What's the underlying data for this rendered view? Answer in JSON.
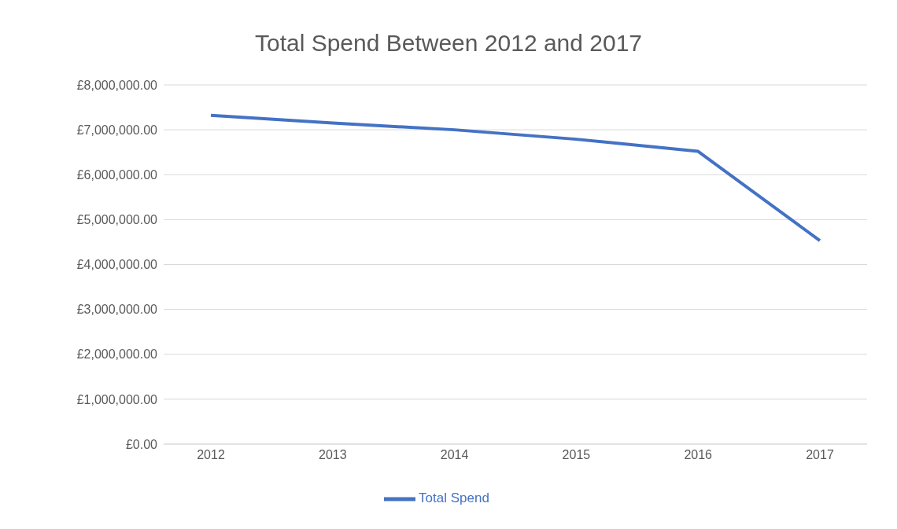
{
  "chart_data": {
    "type": "line",
    "title": "Total Spend Between 2012 and 2017",
    "categories": [
      "2012",
      "2013",
      "2014",
      "2015",
      "2016",
      "2017"
    ],
    "series": [
      {
        "name": "Total Spend",
        "color": "#4472c4",
        "values": [
          7320000,
          7150000,
          7000000,
          6790000,
          6520000,
          4530000
        ]
      }
    ],
    "ylim": [
      0,
      8000000
    ],
    "yticks": [
      {
        "value": 0,
        "label": "£0.00"
      },
      {
        "value": 1000000,
        "label": "£1,000,000.00"
      },
      {
        "value": 2000000,
        "label": "£2,000,000.00"
      },
      {
        "value": 3000000,
        "label": "£3,000,000.00"
      },
      {
        "value": 4000000,
        "label": "£4,000,000.00"
      },
      {
        "value": 5000000,
        "label": "£5,000,000.00"
      },
      {
        "value": 6000000,
        "label": "£6,000,000.00"
      },
      {
        "value": 7000000,
        "label": "£7,000,000.00"
      },
      {
        "value": 8000000,
        "label": "£8,000,000.00"
      }
    ],
    "grid": "y",
    "legend": "bottom",
    "marker": "none",
    "line_style": "solid"
  }
}
